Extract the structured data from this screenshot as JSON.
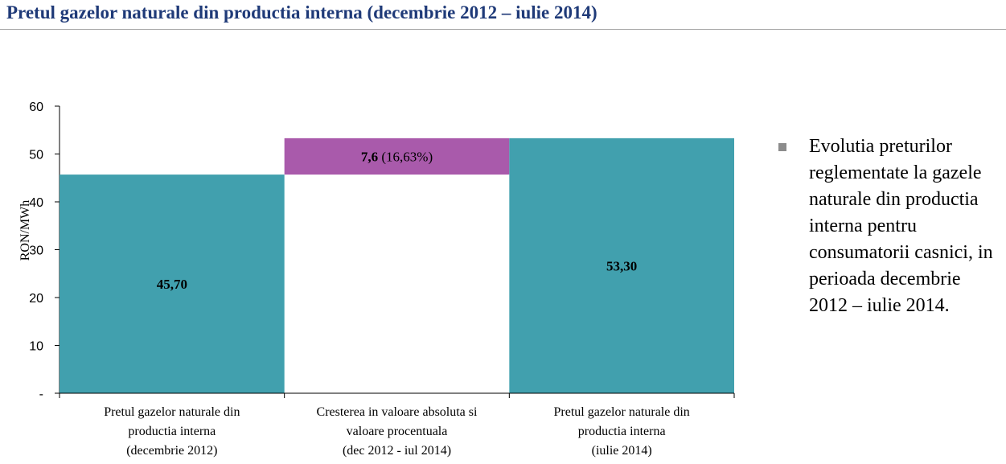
{
  "title": "Pretul gazelor naturale din productia interna (decembrie 2012 – iulie 2014)",
  "colors": {
    "bar": "#41a0ae",
    "increase": "#a95aab",
    "title": "#1f3a78",
    "axis": "#000000"
  },
  "chart_data": {
    "type": "bar",
    "subtype": "waterfall",
    "ylabel": "RON/MWh",
    "ylim": [
      0,
      60
    ],
    "yticks": [
      "-",
      "10",
      "20",
      "30",
      "40",
      "50",
      "60"
    ],
    "grid": false,
    "categories": [
      [
        "Pretul gazelor naturale din",
        "productia interna",
        "(decembrie 2012)"
      ],
      [
        "Cresterea in valoare absoluta si",
        "valoare procentuala",
        "(dec 2012 - iul 2014)"
      ],
      [
        "Pretul gazelor naturale din",
        "productia interna",
        "(iulie 2014)"
      ]
    ],
    "bars": [
      {
        "base": 0,
        "value": 45.7,
        "kind": "total",
        "label_bold": "45,70",
        "label_rest": ""
      },
      {
        "base": 45.7,
        "value": 7.6,
        "kind": "increase",
        "label_bold": "7,6",
        "label_rest": " (16,63%)"
      },
      {
        "base": 0,
        "value": 53.3,
        "kind": "total",
        "label_bold": "53,30",
        "label_rest": ""
      }
    ]
  },
  "sidebar_note": {
    "text": "Evolutia preturilor reglementate la gazele naturale din productia interna pentru consumatorii casnici, in perioada decembrie 2012 – iulie 2014."
  }
}
